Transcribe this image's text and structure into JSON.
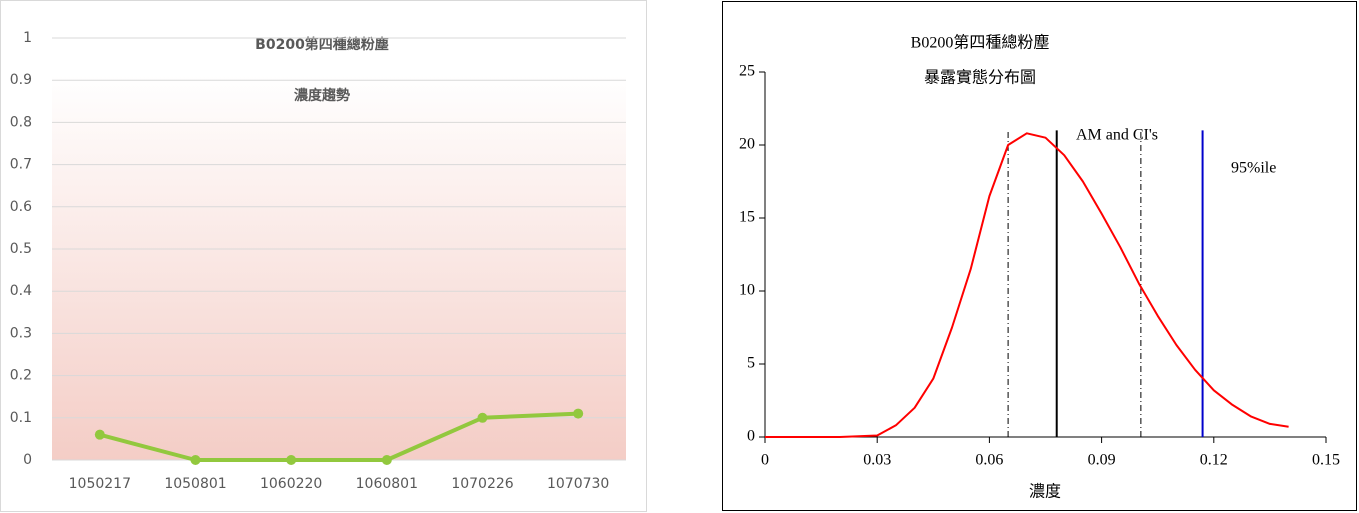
{
  "chart_data": [
    {
      "type": "line",
      "title": "B0200第四種總粉塵",
      "subtitle": "濃度趨勢",
      "categories": [
        "1050217",
        "1050801",
        "1060220",
        "1060801",
        "1070226",
        "1070730"
      ],
      "values": [
        0.06,
        0,
        0,
        0,
        0.1,
        0.11
      ],
      "color": "#92c83e",
      "ylim": [
        0,
        1
      ],
      "yticks": [
        0,
        0.1,
        0.2,
        0.3,
        0.4,
        0.5,
        0.6,
        0.7,
        0.8,
        0.9,
        1
      ],
      "grid": true
    },
    {
      "type": "line",
      "title": "B0200第四種總粉塵",
      "subtitle": "暴露實態分布圖",
      "x_label": "濃度",
      "x": [
        0,
        0.01,
        0.02,
        0.03,
        0.035,
        0.04,
        0.045,
        0.05,
        0.055,
        0.06,
        0.065,
        0.07,
        0.075,
        0.08,
        0.085,
        0.09,
        0.095,
        0.1,
        0.105,
        0.11,
        0.115,
        0.12,
        0.125,
        0.13,
        0.135,
        0.14
      ],
      "values": [
        0,
        0,
        0,
        0.1,
        0.8,
        2,
        4,
        7.5,
        11.5,
        16.5,
        20,
        20.8,
        20.5,
        19.3,
        17.5,
        15.3,
        13,
        10.5,
        8.3,
        6.3,
        4.6,
        3.2,
        2.2,
        1.4,
        0.9,
        0.7
      ],
      "color": "#ff0000",
      "xlim": [
        0,
        0.15
      ],
      "xticks": [
        0,
        0.03,
        0.06,
        0.09,
        0.12,
        0.15
      ],
      "ylim": [
        0,
        25
      ],
      "yticks": [
        0,
        5,
        10,
        15,
        20,
        25
      ],
      "grid": false,
      "vlines": [
        {
          "x": 0.065,
          "y": [
            0,
            21
          ],
          "color": "#000000",
          "style": "dashed"
        },
        {
          "x": 0.078,
          "y": [
            0,
            21
          ],
          "color": "#000000",
          "style": "solid"
        },
        {
          "x": 0.1005,
          "y": [
            0,
            21
          ],
          "color": "#000000",
          "style": "dashed"
        },
        {
          "x": 0.117,
          "y": [
            0,
            21
          ],
          "color": "#0000cc",
          "style": "solid"
        }
      ],
      "annotations": [
        "AM and CI's",
        "95%ile"
      ]
    }
  ]
}
